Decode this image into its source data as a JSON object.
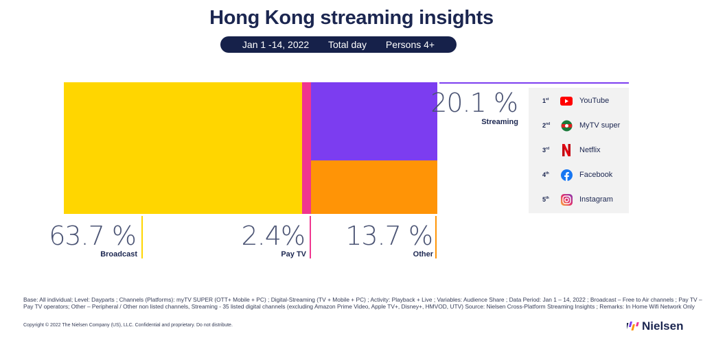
{
  "title": "Hong Kong streaming insights",
  "filters": {
    "period": "Jan 1 -14, 2022",
    "daypart": "Total day",
    "audience": "Persons 4+"
  },
  "chart_data": {
    "type": "bar",
    "title": "Hong Kong streaming insights",
    "categories": [
      "Broadcast",
      "Pay TV",
      "Streaming",
      "Other"
    ],
    "values": [
      63.7,
      2.4,
      20.1,
      13.7
    ],
    "unit": "%",
    "labels": [
      "63.7 %",
      "2.4%",
      "20.1 %",
      "13.7 %"
    ]
  },
  "colors": {
    "broadcast": "#ffd600",
    "paytv": "#f0358f",
    "streaming": "#7c3df0",
    "other": "#ff9406",
    "navy": "#16214a"
  },
  "ranking": [
    {
      "rank": "1",
      "suffix": "st",
      "name": "YouTube",
      "icon": "youtube-icon"
    },
    {
      "rank": "2",
      "suffix": "nd",
      "name": "MyTV super",
      "icon": "mytv-super-icon"
    },
    {
      "rank": "3",
      "suffix": "rd",
      "name": "Netflix",
      "icon": "netflix-icon"
    },
    {
      "rank": "4",
      "suffix": "th",
      "name": "Facebook",
      "icon": "facebook-icon"
    },
    {
      "rank": "5",
      "suffix": "th",
      "name": "Instagram",
      "icon": "instagram-icon"
    }
  ],
  "footnote": "Base: All individual; Level: Dayparts ; Channels (Platforms): myTV SUPER (OTT+ Mobile + PC) ; Digital-Streaming (TV + Mobile + PC)  ; Activity: Playback + Live ; Variables: Audience Share ; Data Period: Jan 1 – 14, 2022 ; Broadcast – Free to Air channels ; Pay TV – Pay TV operators; Other – Peripheral / Other non listed channels, Streaming - 35 listed digital channels (excluding Amazon Prime Video, Apple TV+, Disney+, HMVOD, UTV)     Source: Nielsen Cross-Platform Streaming Insights ; Remarks: In Home Wifi Network Only",
  "copyright": "Copyright © 2022 The Nielsen Company (US), LLC. Confidential and proprietary.  Do not distribute.",
  "brand": "Nielsen"
}
